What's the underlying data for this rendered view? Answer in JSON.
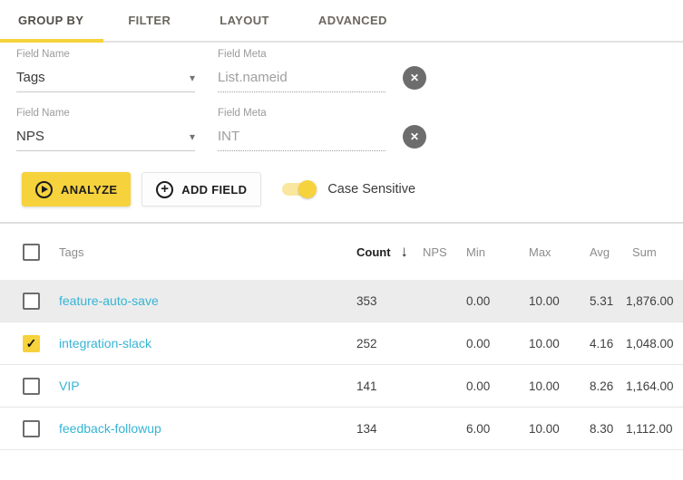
{
  "tabs": [
    {
      "label": "GROUP BY",
      "active": true
    },
    {
      "label": "FILTER",
      "active": false
    },
    {
      "label": "LAYOUT",
      "active": false
    },
    {
      "label": "ADVANCED",
      "active": false
    }
  ],
  "fields": [
    {
      "name_label": "Field Name",
      "name_value": "Tags",
      "meta_label": "Field Meta",
      "meta_placeholder": "List.nameid"
    },
    {
      "name_label": "Field Name",
      "name_value": "NPS",
      "meta_label": "Field Meta",
      "meta_placeholder": "INT"
    }
  ],
  "toolbar": {
    "analyze_label": "ANALYZE",
    "add_field_label": "ADD FIELD",
    "case_sensitive_label": "Case Sensitive",
    "case_sensitive_on": true
  },
  "table": {
    "columns": [
      {
        "label": "Tags",
        "sorted": false
      },
      {
        "label": "Count",
        "sorted": true
      },
      {
        "label": "NPS",
        "sorted": false
      },
      {
        "label": "Min",
        "sorted": false
      },
      {
        "label": "Max",
        "sorted": false
      },
      {
        "label": "Avg",
        "sorted": false
      },
      {
        "label": "Sum",
        "sorted": false
      }
    ],
    "sort": {
      "column": "Count",
      "direction": "desc"
    },
    "rows": [
      {
        "checked": false,
        "highlighted": true,
        "tag": "feature-auto-save",
        "count": "353",
        "nps": "",
        "min": "0.00",
        "max": "10.00",
        "avg": "5.31",
        "sum": "1,876.00"
      },
      {
        "checked": true,
        "highlighted": false,
        "tag": "integration-slack",
        "count": "252",
        "nps": "",
        "min": "0.00",
        "max": "10.00",
        "avg": "4.16",
        "sum": "1,048.00"
      },
      {
        "checked": false,
        "highlighted": false,
        "tag": "VIP",
        "count": "141",
        "nps": "",
        "min": "0.00",
        "max": "10.00",
        "avg": "8.26",
        "sum": "1,164.00"
      },
      {
        "checked": false,
        "highlighted": false,
        "tag": "feedback-followup",
        "count": "134",
        "nps": "",
        "min": "6.00",
        "max": "10.00",
        "avg": "8.30",
        "sum": "1,112.00"
      }
    ]
  },
  "icons": {
    "sort_desc": "↓",
    "remove": "✕",
    "dropdown_caret": "▾",
    "plus": "+",
    "checkmark": "✓"
  },
  "colors": {
    "accent_yellow": "#f6d23c",
    "toggle_track_yellow": "#f9e7a0",
    "link_cyan": "#35b4d4"
  }
}
